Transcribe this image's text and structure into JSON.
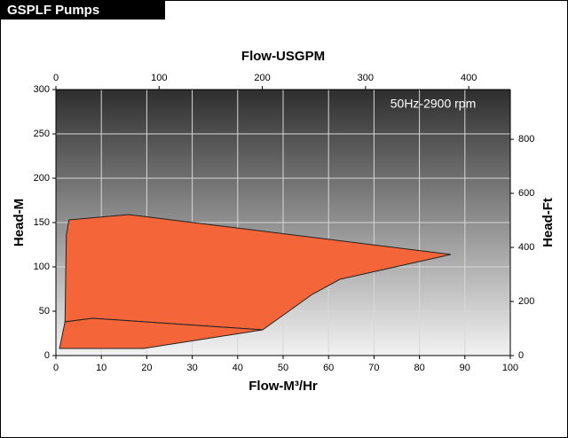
{
  "header": {
    "title": "GSPLF Pumps"
  },
  "chart_data": {
    "type": "polygon",
    "annotation": "50Hz-2900 rpm",
    "x_label": "Flow-M³/Hr",
    "x2_label": "Flow-USGPM",
    "y_label": "Head-M",
    "y2_label": "Head-Ft",
    "xlim": [
      0,
      100
    ],
    "xticks": [
      0,
      10,
      20,
      30,
      40,
      50,
      60,
      70,
      80,
      90,
      100
    ],
    "x2lim": [
      0,
      440.3
    ],
    "x2ticks": [
      0,
      100,
      200,
      300,
      400
    ],
    "ylim": [
      0,
      300
    ],
    "yticks": [
      0,
      50,
      100,
      150,
      200,
      250,
      300
    ],
    "y2lim": [
      0,
      984
    ],
    "y2ticks": [
      0,
      200,
      400,
      600,
      800
    ],
    "grid": true,
    "polygons": [
      {
        "color": "#f4663a",
        "x": [
          2.9,
          16,
          86.9,
          62.5,
          56.4,
          45.5,
          8,
          2,
          2.3
        ],
        "y": [
          153,
          159,
          114,
          86,
          69,
          29,
          42,
          38,
          136
        ]
      },
      {
        "color": "#f4663a",
        "x": [
          2,
          8,
          45.5,
          19.3,
          0.8
        ],
        "y": [
          38,
          42,
          29,
          8,
          8
        ]
      }
    ]
  }
}
